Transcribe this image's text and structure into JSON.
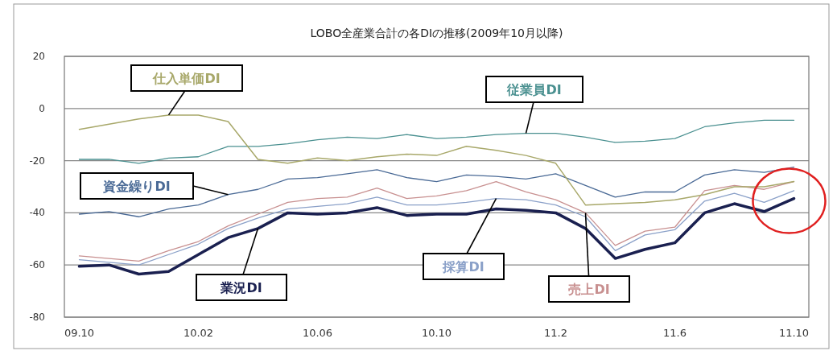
{
  "chart_data": {
    "type": "line",
    "title": "LOBO全産業合計の各DIの推移(2009年10月以降)",
    "categories": [
      "09.10",
      null,
      null,
      null,
      "10.02",
      null,
      null,
      null,
      "10.06",
      null,
      null,
      null,
      "10.10",
      null,
      null,
      null,
      "11.2",
      null,
      null,
      null,
      "11.6",
      null,
      null,
      null,
      "11.10"
    ],
    "ylim": [
      -80,
      20
    ],
    "yticks": [
      20,
      0,
      -20,
      -40,
      -60,
      -80
    ],
    "grid": "y",
    "legend": false,
    "marker": "none",
    "line_style": "solid",
    "series": [
      {
        "name": "業況DI",
        "color": "#1a2050",
        "values": [
          -60.5,
          -60,
          -63.5,
          -62.5,
          -56,
          -49.5,
          -46,
          -40,
          -40.5,
          -40,
          -38,
          -41,
          -40.5,
          -40.5,
          -38.5,
          -39,
          -40,
          -46,
          -57.5,
          -54,
          -51.5,
          -40,
          -36.5,
          -39.5,
          -34.5
        ]
      },
      {
        "name": "売上DI",
        "color": "#c89090",
        "values": [
          -56.5,
          -57.5,
          -58.5,
          -54.5,
          -51,
          -45,
          -40.5,
          -36,
          -34.5,
          -34,
          -30.5,
          -34.5,
          -33.5,
          -31.5,
          -28,
          -32,
          -35,
          -40,
          -52.5,
          -47,
          -45.5,
          -31.5,
          -29.5,
          -31,
          -28
        ]
      },
      {
        "name": "採算DI",
        "color": "#8aa0c8",
        "values": [
          -58,
          -59,
          -60,
          -56,
          -52,
          -46,
          -42,
          -38.5,
          -37.5,
          -36.5,
          -34,
          -37,
          -37,
          -36,
          -34.5,
          -35,
          -37,
          -41.5,
          -54.5,
          -48.5,
          -46.5,
          -35.5,
          -32.5,
          -36,
          -31.5
        ]
      },
      {
        "name": "資金繰りDI",
        "color": "#4a6a96",
        "values": [
          -40.5,
          -39.5,
          -41.5,
          -38.5,
          -37,
          -33,
          -31,
          -27,
          -26.5,
          -25,
          -23.5,
          -26.5,
          -28,
          -25.5,
          -26,
          -27,
          -25,
          -29.5,
          -34,
          -32,
          -32,
          -25.5,
          -23.5,
          -24.5,
          -22.5
        ]
      },
      {
        "name": "従業員DI",
        "color": "#4a9090",
        "values": [
          -19.5,
          -19.5,
          -21,
          -19,
          -18.5,
          -14.5,
          -14.5,
          -13.5,
          -12,
          -11,
          -11.5,
          -10,
          -11.5,
          -11,
          -10,
          -9.5,
          -9.5,
          -11,
          -13,
          -12.5,
          -11.5,
          -7,
          -5.5,
          -4.5,
          -4.5
        ]
      },
      {
        "name": "仕入単価DI",
        "color": "#a8a86a",
        "values": [
          -8,
          -6,
          -4,
          -2.5,
          -2.5,
          -5,
          -19.5,
          -21,
          -19,
          -20,
          -18.5,
          -17.5,
          -18,
          -14.5,
          -16,
          -18,
          -21,
          -37,
          -36.5,
          -36,
          -35,
          -33,
          -30,
          -30,
          -28
        ]
      }
    ]
  }
}
